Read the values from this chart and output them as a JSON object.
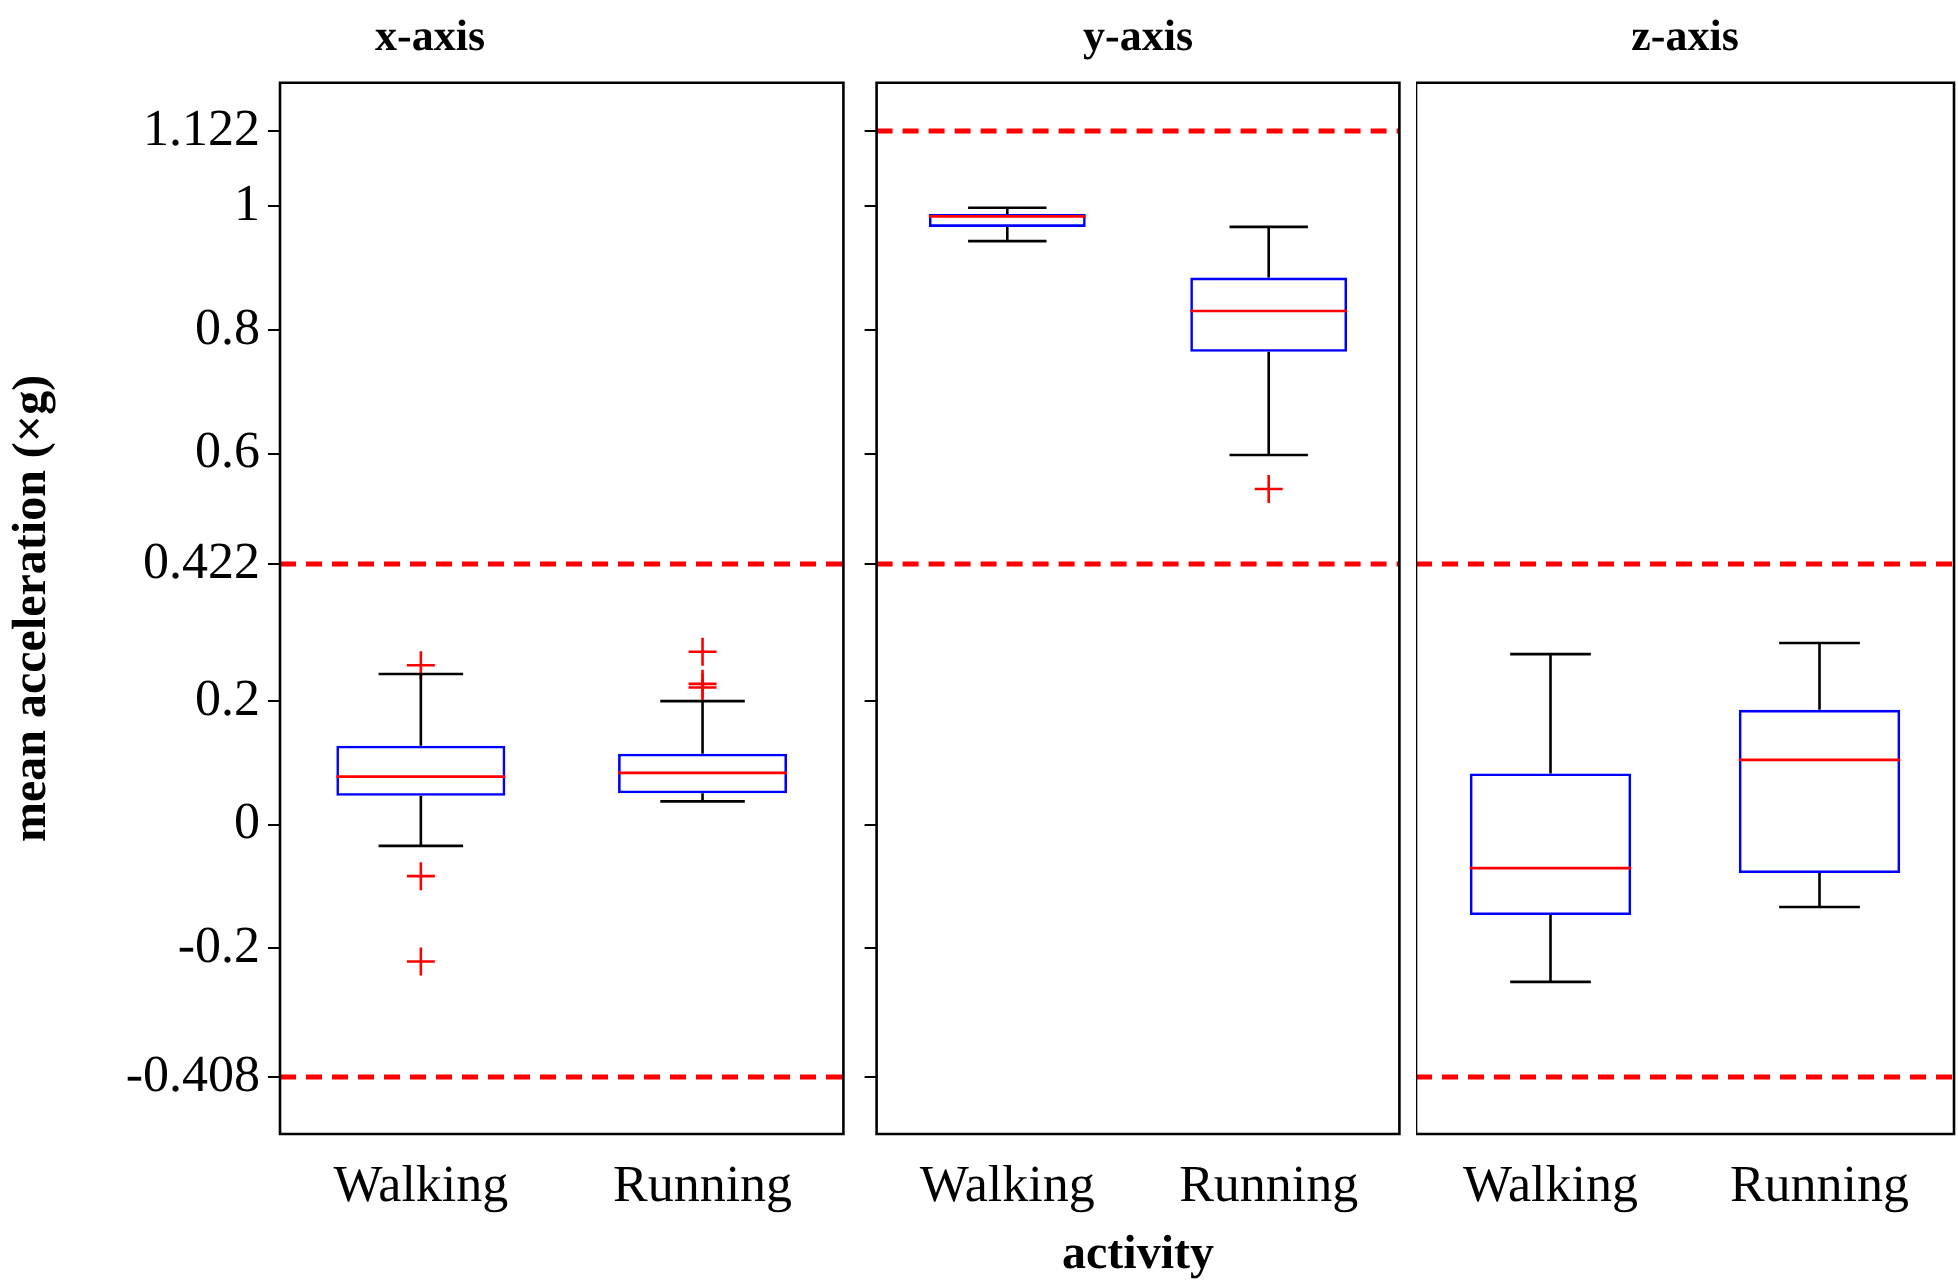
{
  "chart_data": [
    {
      "type": "box",
      "title": "x-axis",
      "ylabel": "mean acceleration (×g)",
      "categories": [
        "Walking",
        "Running"
      ],
      "color": "#0000ff",
      "grid": false,
      "ylim": [
        -0.5,
        1.2
      ],
      "yticks": [
        -0.408,
        -0.2,
        0,
        0.2,
        0.422,
        0.6,
        0.8,
        1,
        1.122
      ],
      "boxes": [
        {
          "low": -0.034,
          "q1": 0.047,
          "median": 0.078,
          "q3": 0.128,
          "high": 0.244,
          "outliers": [
            0.258,
            -0.083,
            -0.221
          ]
        },
        {
          "low": 0.038,
          "q1": 0.051,
          "median": 0.084,
          "q3": 0.115,
          "high": 0.2,
          "outliers": [
            0.28,
            0.228,
            0.222
          ]
        }
      ],
      "ref_lines": [
        {
          "axis": "y",
          "value": 0.422,
          "color": "#ff0000",
          "line_style": "dashed"
        },
        {
          "axis": "y",
          "value": -0.408,
          "color": "#ff0000",
          "line_style": "dashed"
        }
      ]
    },
    {
      "type": "box",
      "title": "y-axis",
      "xlabel": "activity",
      "categories": [
        "Walking",
        "Running"
      ],
      "color": "#0000ff",
      "grid": false,
      "tick_labels": "x",
      "ylim": [
        -0.5,
        1.2
      ],
      "yticks": [
        -0.408,
        -0.2,
        0,
        0.2,
        0.422,
        0.6,
        0.8,
        1,
        1.122
      ],
      "boxes": [
        {
          "low": 0.944,
          "q1": 0.967,
          "median": 0.984,
          "q3": 0.988,
          "high": 0.998
        },
        {
          "low": 0.598,
          "q1": 0.765,
          "median": 0.831,
          "q3": 0.885,
          "high": 0.967,
          "outliers": [
            0.543
          ]
        }
      ],
      "ref_lines": [
        {
          "axis": "y",
          "value": 1.122,
          "color": "#ff0000",
          "line_style": "dashed"
        },
        {
          "axis": "y",
          "value": 0.422,
          "color": "#ff0000",
          "line_style": "dashed"
        }
      ]
    },
    {
      "type": "box",
      "title": "z-axis",
      "categories": [
        "Walking",
        "Running"
      ],
      "color": "#0000ff",
      "grid": false,
      "tick_labels": "x",
      "ylim": [
        -0.5,
        1.2
      ],
      "yticks": [
        -0.408,
        -0.2,
        0,
        0.2,
        0.422,
        0.6,
        0.8,
        1,
        1.122
      ],
      "boxes": [
        {
          "low": -0.254,
          "q1": -0.146,
          "median": -0.07,
          "q3": 0.083,
          "high": 0.276
        },
        {
          "low": -0.133,
          "q1": -0.078,
          "median": 0.105,
          "q3": 0.186,
          "high": 0.294
        }
      ],
      "ref_lines": [
        {
          "axis": "y",
          "value": 0.422,
          "color": "#ff0000",
          "line_style": "dashed"
        },
        {
          "axis": "y",
          "value": -0.408,
          "color": "#ff0000",
          "line_style": "dashed"
        }
      ]
    }
  ]
}
